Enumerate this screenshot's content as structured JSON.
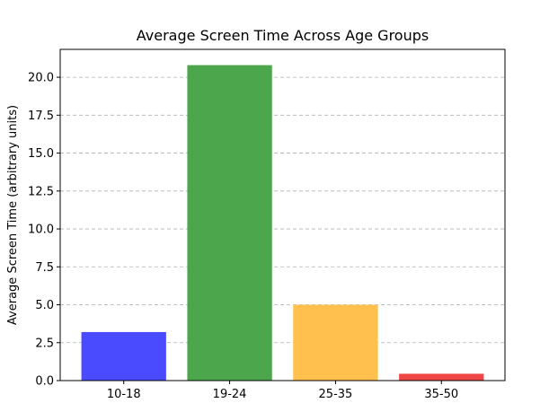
{
  "chart_data": {
    "type": "bar",
    "title": "Average Screen Time Across Age Groups",
    "xlabel": "",
    "ylabel": "Average Screen Time (arbitrary units)",
    "categories": [
      "10-18",
      "19-24",
      "25-35",
      "35-50"
    ],
    "values": [
      3.2,
      20.8,
      5.0,
      0.45
    ],
    "colors": [
      "#4a4aff",
      "#4ca64c",
      "#ffc04d",
      "#f04646"
    ],
    "ylim": [
      0,
      21.84
    ],
    "yticks": [
      0.0,
      2.5,
      5.0,
      7.5,
      10.0,
      12.5,
      15.0,
      17.5,
      20.0
    ],
    "ytick_labels": [
      "0.0",
      "2.5",
      "5.0",
      "7.5",
      "10.0",
      "12.5",
      "15.0",
      "17.5",
      "20.0"
    ],
    "grid": "y-dashed",
    "legend": "none"
  }
}
